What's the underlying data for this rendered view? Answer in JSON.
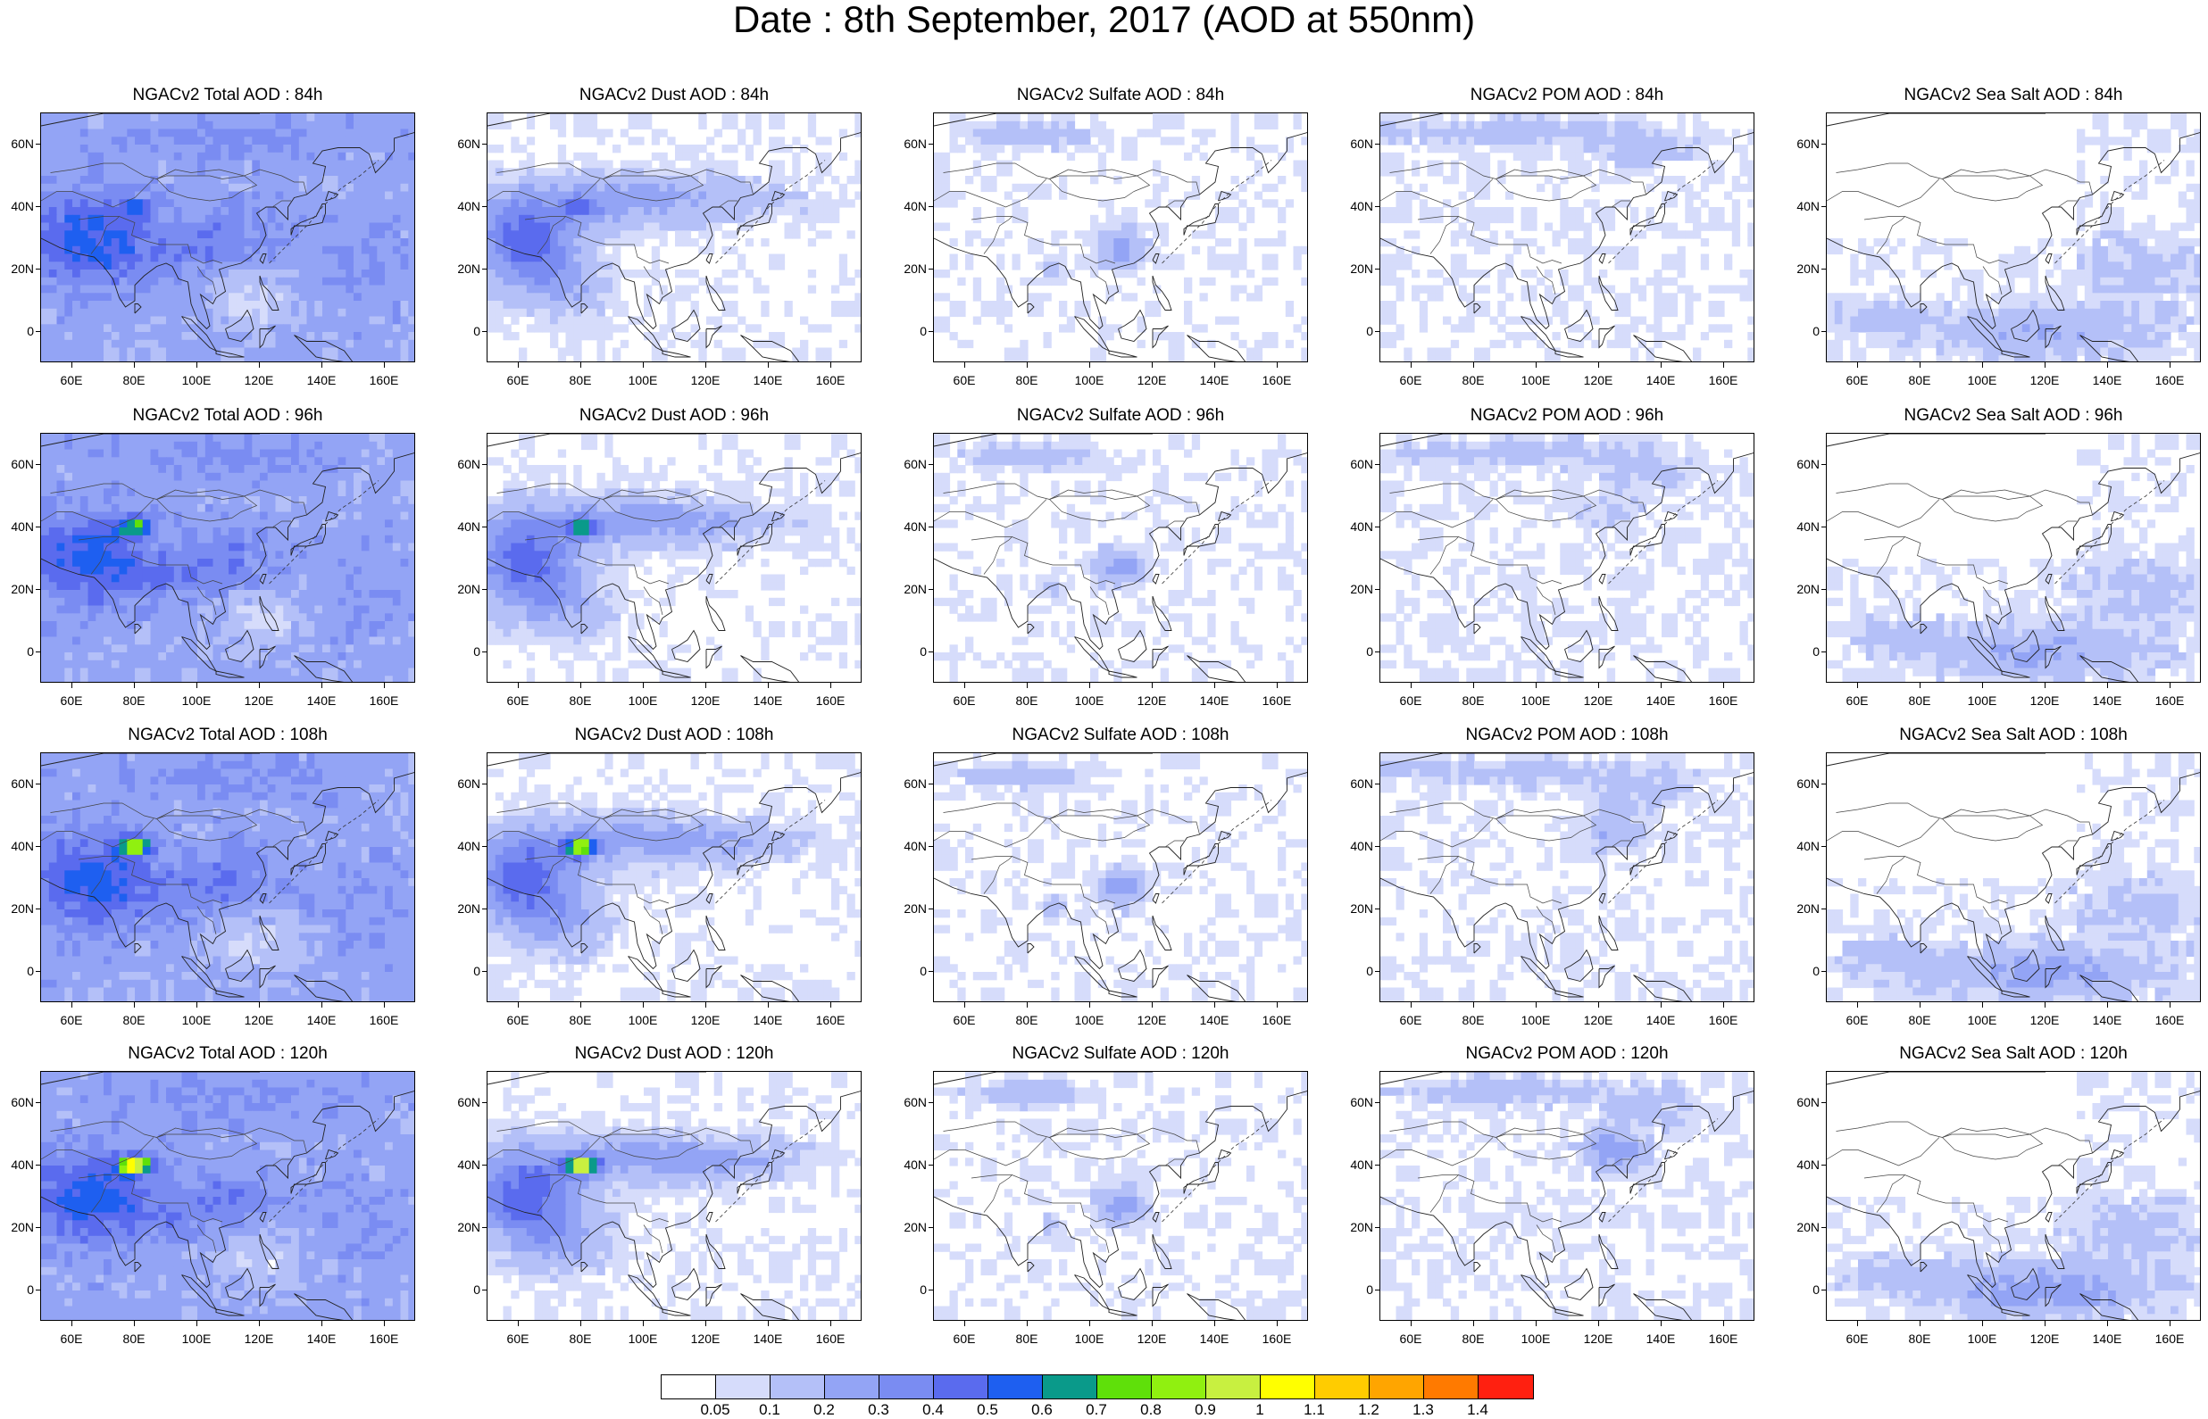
{
  "title": "Date : 8th September, 2017 (AOD at 550nm)",
  "columns": [
    "total",
    "dust",
    "sulfate",
    "pom",
    "seasalt"
  ],
  "panels": [
    [
      "NGACv2 Total AOD : 84h",
      "NGACv2 Dust AOD : 84h",
      "NGACv2 Sulfate AOD : 84h",
      "NGACv2 POM AOD : 84h",
      "NGACv2 Sea Salt AOD : 84h"
    ],
    [
      "NGACv2 Total AOD : 96h",
      "NGACv2 Dust AOD : 96h",
      "NGACv2 Sulfate AOD : 96h",
      "NGACv2 POM AOD : 96h",
      "NGACv2 Sea Salt AOD : 96h"
    ],
    [
      "NGACv2 Total AOD : 108h",
      "NGACv2 Dust AOD : 108h",
      "NGACv2 Sulfate AOD : 108h",
      "NGACv2 POM AOD : 108h",
      "NGACv2 Sea Salt AOD : 108h"
    ],
    [
      "NGACv2 Total AOD : 120h",
      "NGACv2 Dust AOD : 120h",
      "NGACv2 Sulfate AOD : 120h",
      "NGACv2 POM AOD : 120h",
      "NGACv2 Sea Salt  AOD : 120h"
    ]
  ],
  "lat_labels": [
    "60N",
    "40N",
    "20N",
    "0"
  ],
  "lon_labels": [
    "60E",
    "80E",
    "100E",
    "120E",
    "140E",
    "160E"
  ],
  "colorbar": {
    "colors": [
      "#ffffff",
      "#d6dcfb",
      "#b4c0f8",
      "#93a4f5",
      "#7a8cf2",
      "#5a6bee",
      "#1e5ff0",
      "#0a9a8a",
      "#5fe00a",
      "#90f010",
      "#c8f040",
      "#ffff00",
      "#ffcc00",
      "#ffa500",
      "#ff7a00",
      "#ff2010"
    ],
    "labels": [
      "0.05",
      "0.1",
      "0.2",
      "0.3",
      "0.4",
      "0.5",
      "0.6",
      "0.7",
      "0.8",
      "0.9",
      "1",
      "1.1",
      "1.2",
      "1.3",
      "1.4"
    ]
  }
}
